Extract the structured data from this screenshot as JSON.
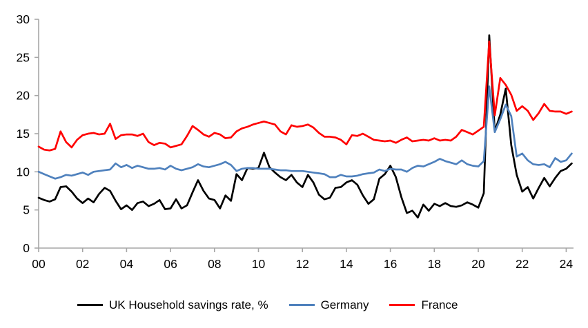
{
  "page": {
    "background": "#ffffff"
  },
  "chart_data": {
    "type": "line",
    "title": "",
    "xlabel": "",
    "ylabel": "",
    "ylim": [
      0,
      30
    ],
    "xlim": [
      2000,
      2024.4
    ],
    "grid": false,
    "legend_position": "bottom",
    "axis_color": "#a6a6a6",
    "tick_label_color": "#000000",
    "y_ticks": [
      0,
      5,
      10,
      15,
      20,
      25,
      30
    ],
    "x_tick_years": [
      2000,
      2002,
      2004,
      2006,
      2008,
      2010,
      2012,
      2014,
      2016,
      2018,
      2020,
      2022,
      2024
    ],
    "x_tick_labels": [
      "00",
      "02",
      "04",
      "06",
      "08",
      "10",
      "12",
      "14",
      "16",
      "18",
      "20",
      "22",
      "24"
    ],
    "x_start": 2000.0,
    "x_step": 0.25,
    "x_frequency": "quarterly",
    "series": [
      {
        "name": "UK Household savings rate, %",
        "color": "#000000",
        "values": [
          6.6,
          6.3,
          6.1,
          6.4,
          8.0,
          8.1,
          7.4,
          6.5,
          5.9,
          6.5,
          6.0,
          7.1,
          7.9,
          7.5,
          6.2,
          5.1,
          5.6,
          5.0,
          5.9,
          6.1,
          5.5,
          5.8,
          6.3,
          5.1,
          5.2,
          6.4,
          5.2,
          5.6,
          7.3,
          8.9,
          7.5,
          6.5,
          6.3,
          5.2,
          6.9,
          6.2,
          9.7,
          8.9,
          10.5,
          10.4,
          10.5,
          12.5,
          10.6,
          9.9,
          9.3,
          8.9,
          9.6,
          8.6,
          8.0,
          9.6,
          8.6,
          7.0,
          6.4,
          6.6,
          7.9,
          8.0,
          8.6,
          8.9,
          8.3,
          6.9,
          5.8,
          6.4,
          9.1,
          9.7,
          10.8,
          9.3,
          6.7,
          4.6,
          4.9,
          4.0,
          5.7,
          4.9,
          5.8,
          5.5,
          5.9,
          5.5,
          5.4,
          5.6,
          6.0,
          5.7,
          5.3,
          7.2,
          27.9,
          15.3,
          17.5,
          20.9,
          13.5,
          9.6,
          7.4,
          8.0,
          6.5,
          7.9,
          9.2,
          8.1,
          9.2,
          10.1,
          10.4,
          11.1
        ]
      },
      {
        "name": "Germany",
        "color": "#4f81bd",
        "values": [
          10.0,
          9.7,
          9.4,
          9.1,
          9.3,
          9.6,
          9.5,
          9.7,
          9.9,
          9.6,
          10.0,
          10.1,
          10.2,
          10.3,
          11.1,
          10.6,
          10.9,
          10.5,
          10.8,
          10.6,
          10.4,
          10.4,
          10.5,
          10.3,
          10.8,
          10.4,
          10.2,
          10.4,
          10.6,
          11.0,
          10.7,
          10.6,
          10.8,
          11.0,
          11.3,
          10.9,
          10.1,
          10.4,
          10.5,
          10.5,
          10.4,
          10.4,
          10.4,
          10.3,
          10.2,
          10.2,
          10.1,
          10.1,
          10.1,
          10.0,
          9.9,
          9.8,
          9.7,
          9.3,
          9.3,
          9.6,
          9.4,
          9.4,
          9.5,
          9.7,
          9.8,
          9.9,
          10.3,
          10.1,
          10.4,
          10.3,
          10.3,
          10.0,
          10.5,
          10.8,
          10.7,
          11.0,
          11.3,
          11.7,
          11.4,
          11.2,
          11.0,
          11.5,
          11.0,
          10.8,
          10.7,
          11.4,
          21.2,
          15.2,
          16.9,
          18.8,
          17.3,
          12.0,
          12.4,
          11.5,
          11.0,
          10.9,
          11.0,
          10.6,
          11.8,
          11.3,
          11.5,
          12.4
        ]
      },
      {
        "name": "France",
        "color": "#ff0000",
        "values": [
          13.3,
          12.9,
          12.8,
          13.0,
          15.3,
          13.9,
          13.2,
          14.2,
          14.8,
          15.0,
          15.1,
          14.9,
          15.0,
          16.3,
          14.3,
          14.8,
          14.9,
          14.9,
          14.7,
          15.0,
          13.9,
          13.5,
          13.8,
          13.7,
          13.2,
          13.4,
          13.6,
          14.7,
          16.0,
          15.5,
          14.9,
          14.6,
          15.1,
          14.9,
          14.4,
          14.5,
          15.3,
          15.7,
          15.9,
          16.2,
          16.4,
          16.6,
          16.4,
          16.2,
          15.3,
          14.9,
          16.1,
          15.9,
          16.0,
          16.2,
          15.8,
          15.1,
          14.6,
          14.6,
          14.5,
          14.2,
          13.6,
          14.8,
          14.7,
          15.0,
          14.6,
          14.2,
          14.1,
          14.0,
          14.1,
          13.8,
          14.2,
          14.5,
          14.0,
          14.1,
          14.2,
          14.1,
          14.4,
          14.1,
          14.2,
          14.1,
          14.6,
          15.5,
          15.2,
          14.9,
          15.4,
          15.9,
          27.1,
          17.4,
          22.3,
          21.4,
          20.1,
          18.0,
          18.6,
          18.0,
          16.8,
          17.7,
          18.9,
          18.0,
          17.9,
          17.9,
          17.6,
          17.9
        ]
      }
    ]
  }
}
